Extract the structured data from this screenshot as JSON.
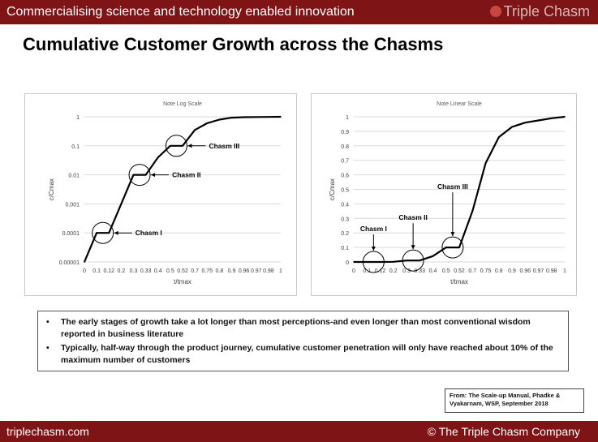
{
  "header": {
    "tagline": "Commercialising science and technology enabled innovation",
    "brand": "Triple Chasm"
  },
  "page_title": "Cumulative Customer Growth across the Chasms",
  "chart_data": [
    {
      "type": "line",
      "title": "Note Log Scale",
      "xlabel": "t/tmax",
      "ylabel": "c/Cmax",
      "yscale": "log",
      "ylim": [
        1e-05,
        1
      ],
      "yticks": [
        "0.00001",
        "0.0001",
        "0.001",
        "0.01",
        "0.1",
        "1"
      ],
      "categories": [
        "0",
        "0.1",
        "0.12",
        "0.2",
        "0.3",
        "0.33",
        "0.4",
        "0.5",
        "0.52",
        "0.7",
        "0.75",
        "0.8",
        "0.9",
        "0.96",
        "0.97",
        "0.98",
        "1"
      ],
      "values": [
        1e-05,
        0.0001,
        0.0001,
        0.001,
        0.01,
        0.01,
        0.04,
        0.1,
        0.1,
        0.35,
        0.6,
        0.8,
        0.93,
        0.97,
        0.98,
        0.99,
        1
      ],
      "annotations": [
        {
          "label": "Chasm I",
          "index": 1.5
        },
        {
          "label": "Chasm II",
          "index": 4.5
        },
        {
          "label": "Chasm III",
          "index": 7.5
        }
      ]
    },
    {
      "type": "line",
      "title": "Note Linear Scale",
      "xlabel": "t/tmax",
      "ylabel": "c/Cmax",
      "yscale": "linear",
      "ylim": [
        0,
        1
      ],
      "yticks": [
        "0",
        "0.1",
        "0.2",
        "0.3",
        "0.4",
        "0.5",
        "0.6",
        "0.7",
        "0.8",
        "0.9",
        "1"
      ],
      "categories": [
        "0",
        "0.1",
        "0.12",
        "0.2",
        "0.3",
        "0.33",
        "0.4",
        "0.5",
        "0.52",
        "0.7",
        "0.75",
        "0.8",
        "0.9",
        "0.96",
        "0.97",
        "0.98",
        "1"
      ],
      "values": [
        0,
        0.0001,
        0.0001,
        0.001,
        0.01,
        0.01,
        0.04,
        0.1,
        0.1,
        0.35,
        0.68,
        0.86,
        0.93,
        0.96,
        0.975,
        0.99,
        1
      ],
      "annotations": [
        {
          "label": "Chasm I",
          "index": 1.5
        },
        {
          "label": "Chasm II",
          "index": 4.5
        },
        {
          "label": "Chasm III",
          "index": 7.5
        }
      ]
    }
  ],
  "notes": [
    "The early stages of growth take a lot longer than most perceptions-and even longer than most conventional wisdom reported in business literature",
    "Typically, half-way through the product journey, cumulative customer penetration will only have reached about 10% of the maximum number of customers"
  ],
  "source": {
    "line1": "From: The Scale-up Manual, Phadke &",
    "line2": "Vyakarnam, WSP, September 2018"
  },
  "footer": {
    "site": "triplechasm.com",
    "copyright": "© The Triple Chasm Company"
  },
  "colors": {
    "bar": "#7f1416",
    "line": "#000000",
    "grid": "#d9d9d9"
  }
}
